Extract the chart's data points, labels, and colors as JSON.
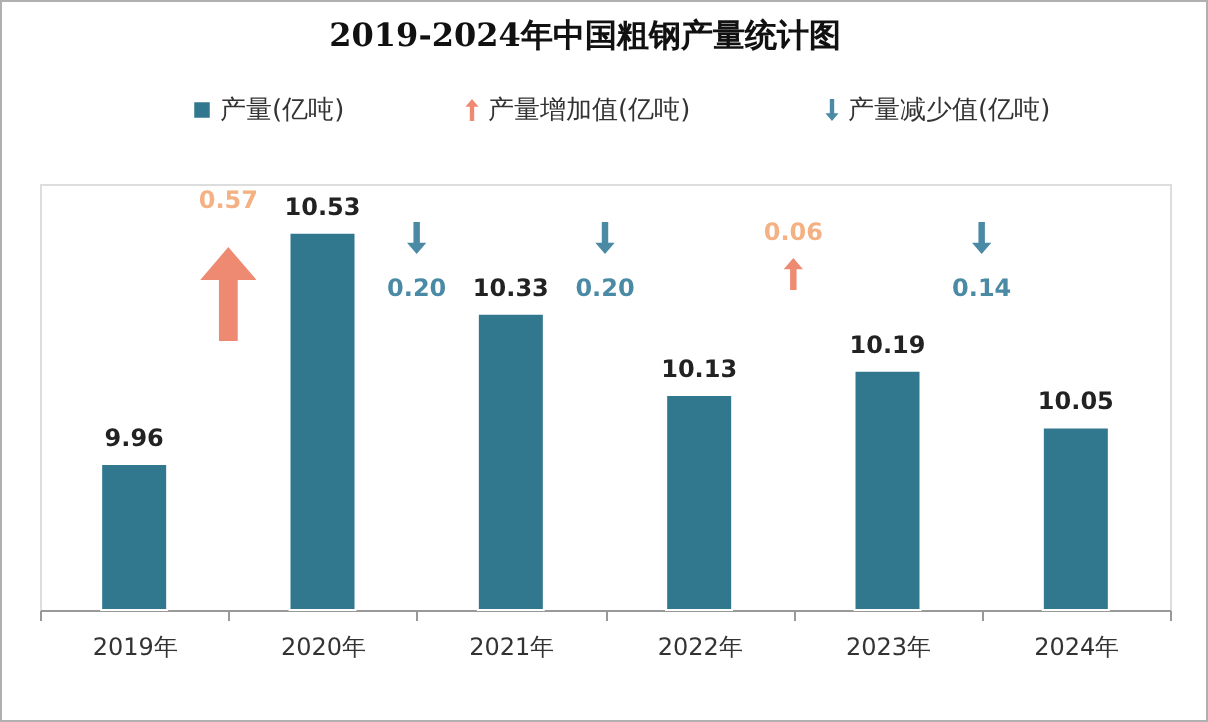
{
  "chart_data": {
    "type": "bar",
    "title": "2019-2024年中国粗钢产量统计图",
    "categories": [
      "2019年",
      "2020年",
      "2021年",
      "2022年",
      "2023年",
      "2024年"
    ],
    "series": [
      {
        "name": "产量(亿吨)",
        "color": "#31788f",
        "values": [
          9.96,
          10.53,
          10.33,
          10.13,
          10.19,
          10.05
        ]
      }
    ],
    "annotations": [
      "产量增加值(亿吨)",
      "产量减少值(亿吨)",
      "0.57",
      "0.20",
      "0.20",
      "0.06",
      "0.14"
    ],
    "ylim": [
      9.6,
      10.65
    ],
    "data_labels": true,
    "tick_labels": "x",
    "legend": "top",
    "grid": false
  }
}
